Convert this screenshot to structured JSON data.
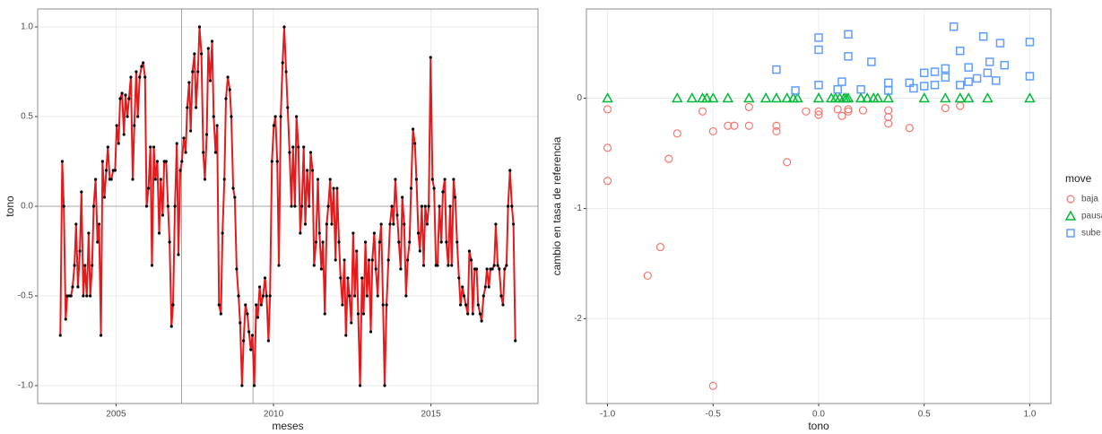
{
  "chart_data": [
    {
      "type": "line",
      "x_label": "meses",
      "y_label": "tono",
      "xlim": [
        2002.51,
        2018.4
      ],
      "ylim": [
        -1.1,
        1.1
      ],
      "xticks": [
        2005,
        2010,
        2015
      ],
      "yticks": [
        {
          "value": -1,
          "label": "-1.0"
        },
        -0.5,
        {
          "value": 0,
          "label": "0.0"
        },
        0.5,
        {
          "value": 1,
          "label": "1.0"
        }
      ],
      "grid": true,
      "hline": 0,
      "vlines": [
        2007.08,
        2009.35
      ],
      "series": [
        {
          "name": "tono",
          "color": "#e41a1c",
          "point_color": "#000000",
          "x": [
            2003.23,
            2003.29,
            2003.34,
            2003.4,
            2003.45,
            2003.51,
            2003.57,
            2003.62,
            2003.68,
            2003.73,
            2003.79,
            2003.85,
            2003.9,
            2003.96,
            2004.01,
            2004.07,
            2004.13,
            2004.18,
            2004.24,
            2004.29,
            2004.35,
            2004.41,
            2004.46,
            2004.52,
            2004.57,
            2004.63,
            2004.69,
            2004.74,
            2004.8,
            2004.85,
            2004.91,
            2004.97,
            2005.02,
            2005.08,
            2005.13,
            2005.19,
            2005.25,
            2005.3,
            2005.36,
            2005.41,
            2005.47,
            2005.53,
            2005.58,
            2005.64,
            2005.69,
            2005.75,
            2005.81,
            2005.86,
            2005.92,
            2005.97,
            2006.03,
            2006.09,
            2006.14,
            2006.2,
            2006.25,
            2006.31,
            2006.37,
            2006.42,
            2006.48,
            2006.53,
            2006.59,
            2006.65,
            2006.7,
            2006.76,
            2006.81,
            2006.87,
            2006.93,
            2006.98,
            2007.04,
            2007.09,
            2007.15,
            2007.21,
            2007.26,
            2007.32,
            2007.37,
            2007.43,
            2007.49,
            2007.54,
            2007.6,
            2007.65,
            2007.71,
            2007.77,
            2007.82,
            2007.88,
            2007.93,
            2007.99,
            2008.05,
            2008.1,
            2008.16,
            2008.21,
            2008.27,
            2008.33,
            2008.38,
            2008.44,
            2008.49,
            2008.55,
            2008.61,
            2008.66,
            2008.72,
            2008.77,
            2008.83,
            2008.89,
            2008.94,
            2009.0,
            2009.05,
            2009.11,
            2009.17,
            2009.22,
            2009.28,
            2009.33,
            2009.39,
            2009.45,
            2009.5,
            2009.56,
            2009.61,
            2009.67,
            2009.73,
            2009.78,
            2009.84,
            2009.89,
            2009.95,
            2010.01,
            2010.06,
            2010.12,
            2010.17,
            2010.23,
            2010.29,
            2010.34,
            2010.4,
            2010.45,
            2010.51,
            2010.57,
            2010.62,
            2010.68,
            2010.73,
            2010.79,
            2010.85,
            2010.9,
            2010.96,
            2011.01,
            2011.07,
            2011.13,
            2011.18,
            2011.24,
            2011.29,
            2011.35,
            2011.41,
            2011.46,
            2011.52,
            2011.57,
            2011.63,
            2011.69,
            2011.74,
            2011.8,
            2011.85,
            2011.91,
            2011.97,
            2012.02,
            2012.08,
            2012.13,
            2012.19,
            2012.25,
            2012.3,
            2012.36,
            2012.41,
            2012.47,
            2012.53,
            2012.58,
            2012.64,
            2012.69,
            2012.75,
            2012.81,
            2012.86,
            2012.92,
            2012.97,
            2013.03,
            2013.09,
            2013.14,
            2013.2,
            2013.25,
            2013.31,
            2013.37,
            2013.42,
            2013.48,
            2013.53,
            2013.59,
            2013.65,
            2013.7,
            2013.76,
            2013.81,
            2013.87,
            2013.93,
            2013.98,
            2014.04,
            2014.09,
            2014.15,
            2014.21,
            2014.26,
            2014.32,
            2014.37,
            2014.43,
            2014.49,
            2014.54,
            2014.6,
            2014.65,
            2014.71,
            2014.77,
            2014.82,
            2014.88,
            2014.93,
            2014.99,
            2015.05,
            2015.1,
            2015.16,
            2015.21,
            2015.27,
            2015.33,
            2015.38,
            2015.44,
            2015.49,
            2015.55,
            2015.61,
            2015.66,
            2015.72,
            2015.77,
            2015.83,
            2015.89,
            2015.94,
            2016.0,
            2016.05,
            2016.11,
            2016.17,
            2016.22,
            2016.28,
            2016.33,
            2016.39,
            2016.45,
            2016.5,
            2016.56,
            2016.61,
            2016.67,
            2016.73,
            2016.78,
            2016.84,
            2016.89,
            2016.95,
            2017.01,
            2017.06,
            2017.12,
            2017.17,
            2017.23,
            2017.29,
            2017.34,
            2017.4,
            2017.45,
            2017.51,
            2017.57,
            2017.62,
            2017.68
          ],
          "values": [
            -0.72,
            0.25,
            0.0,
            -0.63,
            -0.5,
            -0.5,
            -0.5,
            -0.45,
            -0.33,
            -0.1,
            -0.45,
            -0.25,
            0.08,
            -0.5,
            -0.33,
            -0.5,
            -0.15,
            -0.5,
            -0.33,
            0.0,
            0.15,
            -0.2,
            -0.1,
            -0.72,
            0.25,
            0.05,
            0.2,
            0.33,
            0.15,
            0.15,
            0.2,
            0.2,
            0.45,
            0.35,
            0.6,
            0.63,
            0.4,
            0.62,
            0.5,
            0.6,
            0.72,
            0.15,
            0.45,
            0.75,
            0.5,
            0.72,
            0.78,
            0.8,
            0.72,
            0.0,
            0.1,
            0.33,
            -0.33,
            0.33,
            0.15,
            0.25,
            -0.15,
            0.15,
            -0.05,
            0.25,
            0.25,
            0.0,
            -0.2,
            -0.67,
            -0.55,
            0.0,
            0.35,
            -0.27,
            0.2,
            0.25,
            0.38,
            0.3,
            0.55,
            0.69,
            0.42,
            0.75,
            0.85,
            0.55,
            0.75,
            1.0,
            0.85,
            0.3,
            0.15,
            0.4,
            0.88,
            0.7,
            0.92,
            0.5,
            0.3,
            0.45,
            -0.55,
            -0.6,
            -0.15,
            0.15,
            0.6,
            0.72,
            0.65,
            0.5,
            0.1,
            0.05,
            -0.35,
            -0.5,
            -0.65,
            -1.0,
            -0.75,
            -0.55,
            -0.6,
            -0.7,
            -0.8,
            -0.72,
            -1.0,
            -0.55,
            -0.62,
            -0.45,
            -0.55,
            -0.5,
            -0.4,
            -0.5,
            -0.75,
            -0.5,
            0.25,
            0.45,
            0.5,
            0.25,
            -0.33,
            0.5,
            0.8,
            1.0,
            0.75,
            0.55,
            0.3,
            0.0,
            0.33,
            0.0,
            0.5,
            0.33,
            -0.15,
            0.0,
            0.33,
            -0.1,
            0.2,
            0.0,
            0.3,
            0.2,
            -0.33,
            -0.2,
            0.15,
            -0.15,
            -0.35,
            -0.2,
            -0.6,
            -0.1,
            0.0,
            0.15,
            -0.1,
            0.1,
            -0.3,
            0.1,
            -0.2,
            -0.4,
            -0.55,
            -0.3,
            -0.72,
            -0.4,
            -0.5,
            -0.65,
            -0.15,
            -0.5,
            -0.25,
            -0.6,
            -1.0,
            -0.4,
            -0.6,
            -0.2,
            -0.5,
            -0.3,
            -0.7,
            -0.3,
            -0.15,
            -0.35,
            -0.5,
            -0.2,
            -0.1,
            -0.55,
            -1.0,
            -0.55,
            -0.3,
            -0.1,
            0.0,
            -0.1,
            0.15,
            -0.05,
            -0.2,
            -0.35,
            0.05,
            -0.1,
            -0.5,
            -0.3,
            -0.2,
            0.1,
            0.43,
            0.35,
            0.15,
            -0.15,
            -0.25,
            0.0,
            -0.33,
            0.0,
            -0.1,
            0.0,
            0.83,
            0.15,
            0.1,
            -0.33,
            -0.33,
            0.0,
            -0.2,
            0.08,
            0.15,
            -0.2,
            -0.33,
            0.0,
            -0.33,
            0.15,
            0.05,
            -0.2,
            -0.4,
            -0.55,
            -0.45,
            -0.5,
            -0.55,
            -0.6,
            -0.25,
            -0.3,
            -0.6,
            -0.35,
            -0.35,
            -0.55,
            -0.6,
            -0.64,
            -0.5,
            -0.45,
            -0.35,
            -0.45,
            -0.35,
            -0.35,
            -0.33,
            -0.1,
            -0.33,
            -0.35,
            -0.5,
            -0.55,
            -0.35,
            -0.33,
            0.0,
            0.2,
            0.0,
            -0.1,
            -0.75
          ]
        }
      ]
    },
    {
      "type": "scatter",
      "x_label": "tono",
      "y_label": "cambio en tasa de referencia",
      "xlim": [
        -1.1,
        1.1
      ],
      "ylim": [
        -2.77,
        0.81
      ],
      "xticks": [
        {
          "value": -1,
          "label": "-1.0"
        },
        -0.5,
        {
          "value": 0,
          "label": "0.0"
        },
        0.5,
        {
          "value": 1,
          "label": "1.0"
        }
      ],
      "yticks": [
        -2,
        -1,
        0
      ],
      "grid": true,
      "legend": "right",
      "legend_title": "move",
      "series": [
        {
          "name": "baja",
          "color": "#F8766D",
          "shape": "circle",
          "x": [
            -1.0,
            -1.0,
            -1.0,
            -0.81,
            -0.75,
            -0.71,
            -0.67,
            -0.55,
            -0.5,
            -0.5,
            -0.43,
            -0.4,
            -0.33,
            -0.33,
            -0.2,
            -0.2,
            -0.15,
            -0.06,
            0.0,
            0.0,
            0.09,
            0.11,
            0.14,
            0.14,
            0.21,
            0.33,
            0.33,
            0.33,
            0.43,
            0.6,
            0.67
          ],
          "values": [
            -0.1,
            -0.45,
            -0.75,
            -1.61,
            -1.35,
            -0.55,
            -0.32,
            -0.12,
            -2.61,
            -0.3,
            -0.25,
            -0.25,
            -0.25,
            -0.08,
            -0.25,
            -0.3,
            -0.58,
            -0.12,
            -0.12,
            -0.15,
            -0.1,
            -0.16,
            -0.12,
            -0.1,
            -0.11,
            -0.11,
            -0.17,
            -0.23,
            -0.27,
            -0.09,
            -0.07
          ]
        },
        {
          "name": "pausa",
          "color": "#00BA38",
          "shape": "triangle",
          "x": [
            -1.0,
            -0.67,
            -0.6,
            -0.55,
            -0.53,
            -0.5,
            -0.43,
            -0.33,
            -0.25,
            -0.2,
            -0.15,
            -0.12,
            -0.1,
            0.0,
            0.06,
            0.08,
            0.1,
            0.12,
            0.13,
            0.14,
            0.2,
            0.23,
            0.26,
            0.28,
            0.33,
            0.5,
            0.6,
            0.67,
            0.71,
            0.8,
            1.0
          ],
          "values": [
            0,
            0,
            0,
            0,
            0,
            0,
            0,
            0,
            0,
            0,
            0,
            0,
            0,
            0,
            0,
            0,
            0,
            0,
            0,
            0,
            0,
            0,
            0,
            0,
            0,
            0,
            0,
            0,
            0,
            0,
            0
          ]
        },
        {
          "name": "sube",
          "color": "#619CFF",
          "shape": "square",
          "x": [
            -0.2,
            -0.11,
            0.0,
            0.0,
            0.0,
            0.09,
            0.11,
            0.14,
            0.14,
            0.2,
            0.25,
            0.33,
            0.33,
            0.43,
            0.45,
            0.5,
            0.5,
            0.55,
            0.55,
            0.6,
            0.6,
            0.64,
            0.67,
            0.67,
            0.71,
            0.71,
            0.75,
            0.78,
            0.8,
            0.81,
            0.84,
            0.86,
            0.88,
            1.0,
            1.0
          ],
          "values": [
            0.26,
            0.07,
            0.55,
            0.44,
            0.12,
            0.08,
            0.15,
            0.58,
            0.38,
            0.08,
            0.33,
            0.14,
            0.07,
            0.14,
            0.09,
            0.23,
            0.11,
            0.24,
            0.12,
            0.27,
            0.19,
            0.65,
            0.43,
            0.12,
            0.28,
            0.15,
            0.18,
            0.56,
            0.23,
            0.33,
            0.16,
            0.5,
            0.3,
            0.51,
            0.2
          ]
        }
      ]
    }
  ]
}
